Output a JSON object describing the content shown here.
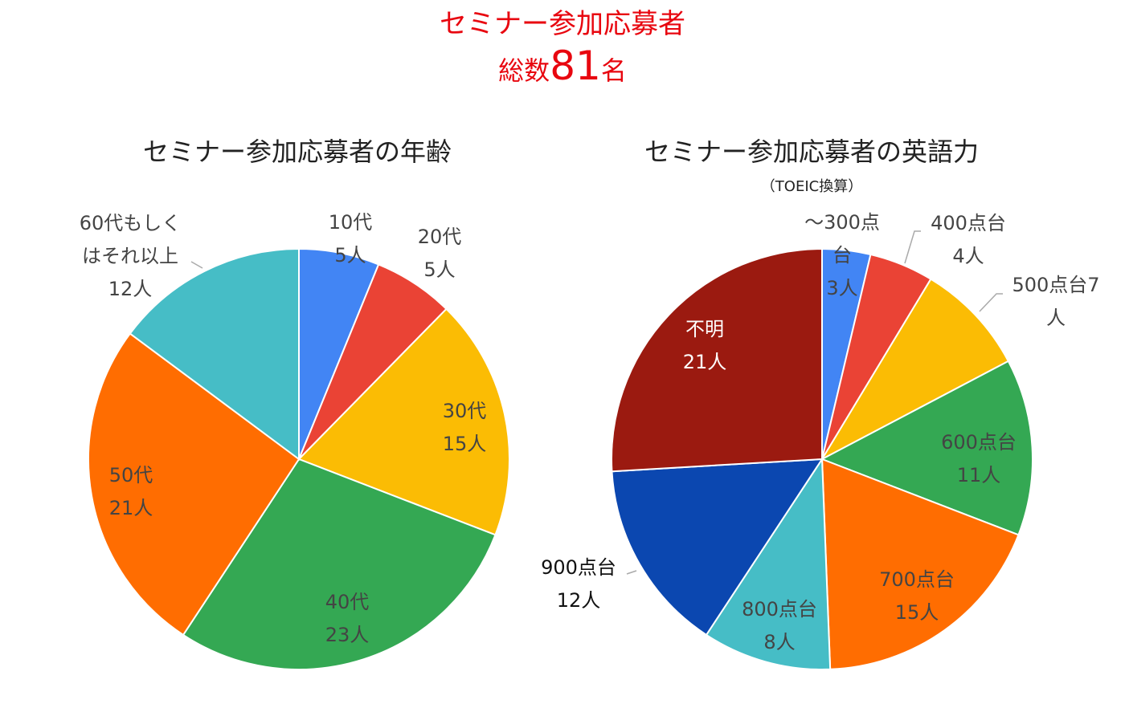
{
  "header": {
    "line1": "セミナー参加応募者",
    "total_prefix": "総数",
    "total_value": "81",
    "total_suffix": "名"
  },
  "colors": {
    "header_red": "#e8060f",
    "label_dark": "#444444",
    "label_white": "#ffffff",
    "label_black": "#111111",
    "leader_line": "#aaaaaa"
  },
  "chart_data": [
    {
      "type": "pie",
      "title": "セミナー参加応募者の年齢",
      "unit": "人",
      "slices": [
        {
          "label": "10代",
          "value": 5,
          "color": "#4285f4",
          "label_lines": [
            "10代",
            "5人"
          ]
        },
        {
          "label": "20代",
          "value": 5,
          "color": "#ea4335",
          "label_lines": [
            "20代",
            "5人"
          ]
        },
        {
          "label": "30代",
          "value": 15,
          "color": "#fbbc04",
          "label_lines": [
            "30代",
            "15人"
          ]
        },
        {
          "label": "40代",
          "value": 23,
          "color": "#34a853",
          "label_lines": [
            "40代",
            "23人"
          ]
        },
        {
          "label": "50代",
          "value": 21,
          "color": "#ff6d01",
          "label_lines": [
            "50代",
            "21人"
          ]
        },
        {
          "label": "60代もしくはそれ以上",
          "value": 12,
          "color": "#46bdc6",
          "label_lines": [
            "60代もしく",
            "はそれ以上",
            "12人"
          ]
        }
      ]
    },
    {
      "type": "pie",
      "title": "セミナー参加応募者の英語力",
      "subtitle": "（TOEIC換算）",
      "unit": "人",
      "slices": [
        {
          "label": "〜300点台",
          "value": 3,
          "color": "#4285f4",
          "label_lines": [
            "〜300点",
            "台",
            "3人"
          ]
        },
        {
          "label": "400点台",
          "value": 4,
          "color": "#ea4335",
          "label_lines": [
            "400点台",
            "4人"
          ]
        },
        {
          "label": "500点台",
          "value": 7,
          "color": "#fbbc04",
          "label_lines": [
            "500点台7",
            "人"
          ]
        },
        {
          "label": "600点台",
          "value": 11,
          "color": "#34a853",
          "label_lines": [
            "600点台",
            "11人"
          ]
        },
        {
          "label": "700点台",
          "value": 15,
          "color": "#ff6d01",
          "label_lines": [
            "700点台",
            "15人"
          ]
        },
        {
          "label": "800点台",
          "value": 8,
          "color": "#46bdc6",
          "label_lines": [
            "800点台",
            "8人"
          ]
        },
        {
          "label": "900点台",
          "value": 12,
          "color": "#0b47b0",
          "label_lines": [
            "900点台",
            "12人"
          ]
        },
        {
          "label": "不明",
          "value": 21,
          "color": "#9b1a10",
          "label_lines": [
            "不明",
            "21人"
          ]
        }
      ]
    }
  ]
}
